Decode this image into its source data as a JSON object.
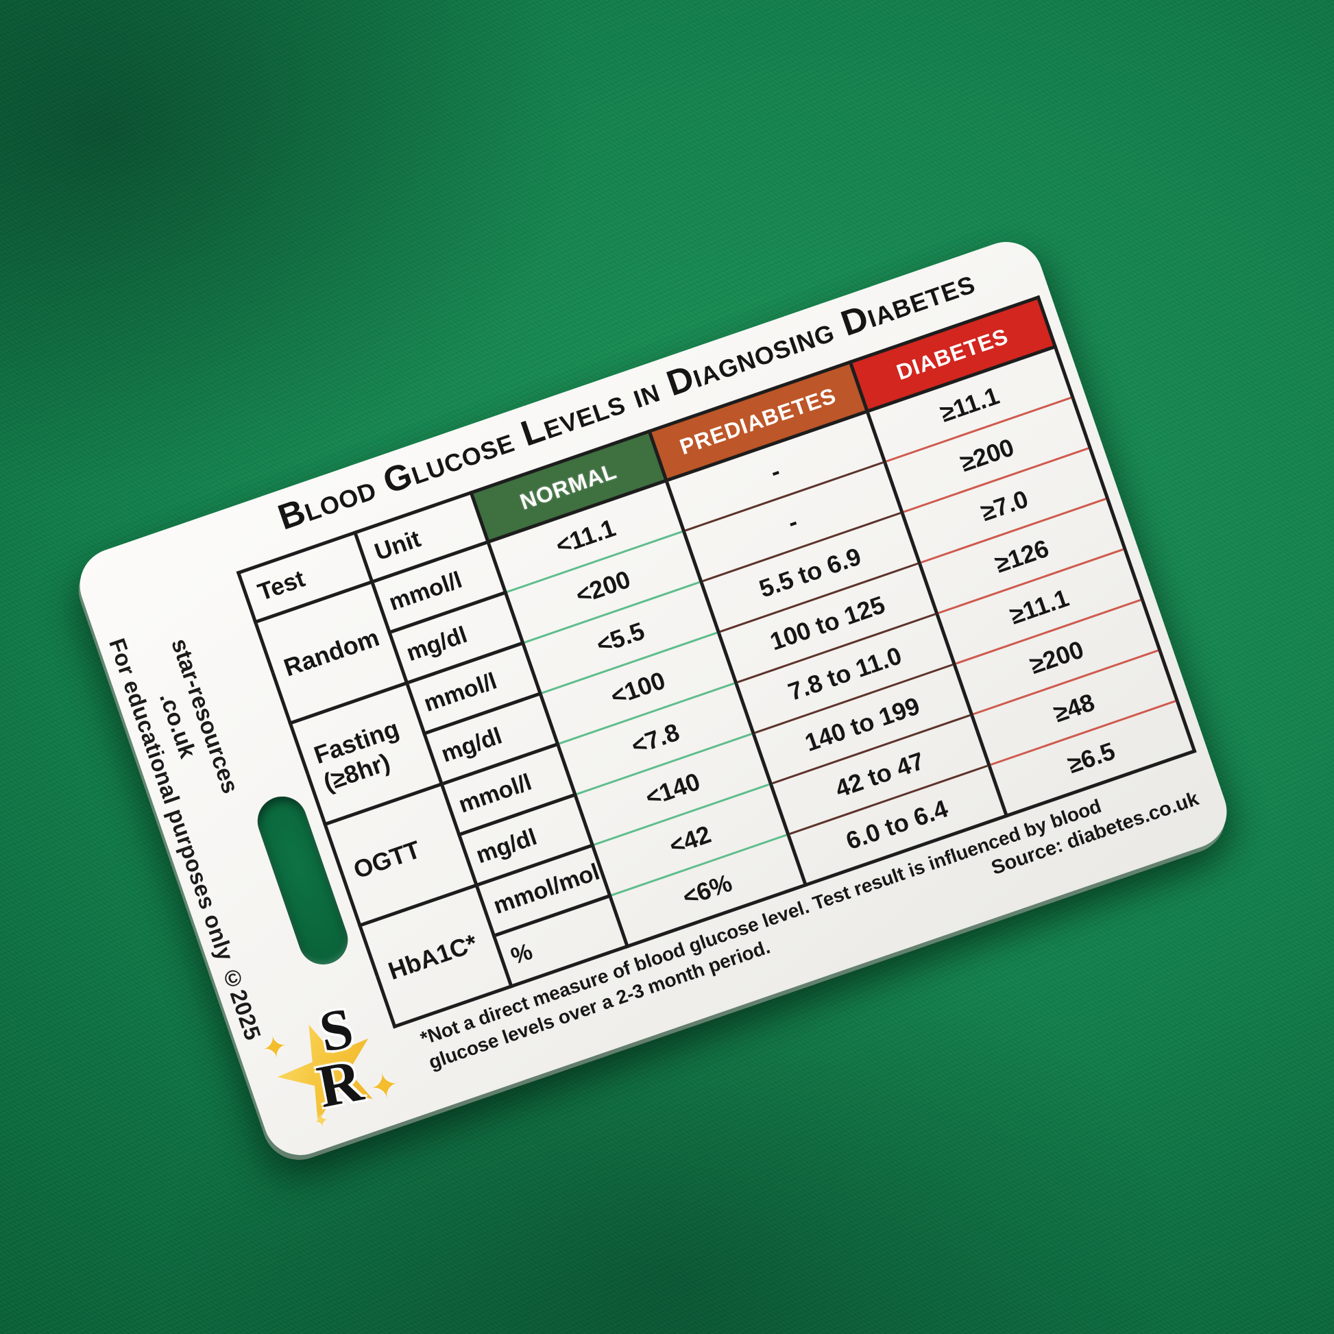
{
  "card": {
    "title": "Blood Glucose Levels in Diagnosing Diabetes",
    "side": {
      "brand_line1": "star-resources",
      "brand_line2": ".co.uk",
      "disclaimer": "For educational purposes only ©2025"
    },
    "logo": {
      "letter_s": "S",
      "letter_r": "R",
      "sparkle_glyph": "✦"
    },
    "table": {
      "headers": {
        "test": "Test",
        "unit": "Unit",
        "normal": "NORMAL",
        "prediabetes": "PREDIABETES",
        "diabetes": "DIABETES"
      },
      "groups": [
        {
          "test": "Random",
          "test2": "",
          "rows": [
            {
              "unit": "mmol/l",
              "normal": "<11.1",
              "prediabetes": "-",
              "diabetes": "≥11.1"
            },
            {
              "unit": "mg/dl",
              "normal": "<200",
              "prediabetes": "-",
              "diabetes": "≥200"
            }
          ]
        },
        {
          "test": "Fasting",
          "test2": "(≥8hr)",
          "rows": [
            {
              "unit": "mmol/l",
              "normal": "<5.5",
              "prediabetes": "5.5 to 6.9",
              "diabetes": "≥7.0"
            },
            {
              "unit": "mg/dl",
              "normal": "<100",
              "prediabetes": "100 to 125",
              "diabetes": "≥126"
            }
          ]
        },
        {
          "test": "OGTT",
          "test2": "",
          "rows": [
            {
              "unit": "mmol/l",
              "normal": "<7.8",
              "prediabetes": "7.8 to 11.0",
              "diabetes": "≥11.1"
            },
            {
              "unit": "mg/dl",
              "normal": "<140",
              "prediabetes": "140 to 199",
              "diabetes": "≥200"
            }
          ]
        },
        {
          "test": "HbA1C*",
          "test2": "",
          "rows": [
            {
              "unit": "mmol/mol",
              "normal": "<42",
              "prediabetes": "42 to 47",
              "diabetes": "≥48"
            },
            {
              "unit": "%",
              "normal": "<6%",
              "prediabetes": "6.0 to 6.4",
              "diabetes": "≥6.5"
            }
          ]
        }
      ]
    },
    "footnote": {
      "line1": "*Not a direct measure of blood glucose level. Test result is influenced by blood",
      "line2": "glucose levels over a 2-3 month period."
    },
    "source": "Source: diabetes.co.uk",
    "colors": {
      "normal_header": "#3f7040",
      "prediabetes_header": "#bd5628",
      "diabetes_header": "#d2261f",
      "normal_divider": "#5fbd8c",
      "prediabetes_divider": "#5d332b",
      "diabetes_divider": "#cf5a4e",
      "felt": "#0e7a45"
    }
  }
}
